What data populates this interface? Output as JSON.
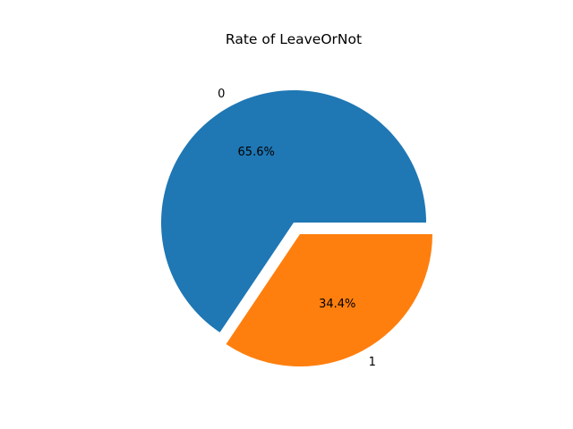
{
  "chart_data": {
    "type": "pie",
    "title": "Rate of LeaveOrNot",
    "labels": [
      "0",
      "1"
    ],
    "values": [
      65.6,
      34.4
    ],
    "percent_labels": [
      "65.6%",
      "34.4%"
    ],
    "explode": [
      0,
      0.1
    ],
    "colors": [
      "#1f77b4",
      "#ff7f0e"
    ],
    "start_angle_deg": 0,
    "legend": "none"
  }
}
